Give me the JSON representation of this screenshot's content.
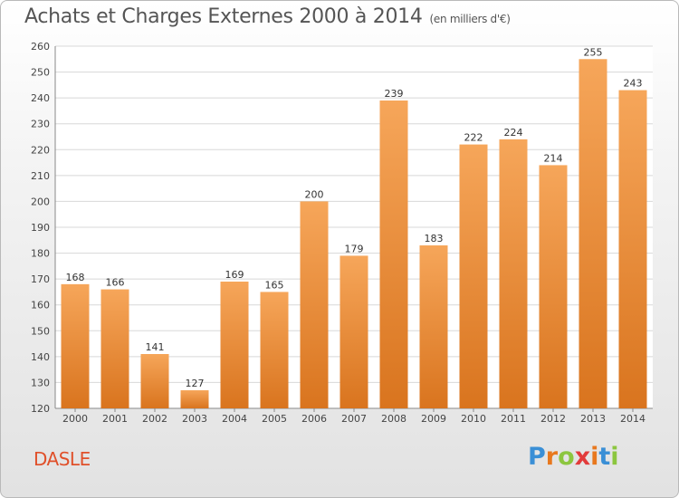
{
  "header": {
    "title": "Achats et Charges Externes 2000 à 2014",
    "unit": "(en milliers d'€)"
  },
  "footer": {
    "place": "DASLE",
    "logo_letters": [
      "P",
      "r",
      "o",
      "x",
      "i",
      "t",
      "i"
    ],
    "logo_colors": [
      "#3a8fd6",
      "#e8781e",
      "#8cc63f",
      "#e23b3b",
      "#e8781e",
      "#3a8fd6",
      "#8cc63f"
    ]
  },
  "chart_data": {
    "type": "bar",
    "categories": [
      "2000",
      "2001",
      "2002",
      "2003",
      "2004",
      "2005",
      "2006",
      "2007",
      "2008",
      "2009",
      "2010",
      "2011",
      "2012",
      "2013",
      "2014"
    ],
    "values": [
      168,
      166,
      141,
      127,
      169,
      165,
      200,
      179,
      239,
      183,
      222,
      224,
      214,
      255,
      243
    ],
    "ylim": [
      120,
      260
    ],
    "yticks": [
      120,
      130,
      140,
      150,
      160,
      170,
      180,
      190,
      200,
      210,
      220,
      230,
      240,
      250,
      260
    ],
    "grid": true,
    "bar_color_light": "#f6a65a",
    "bar_color_dark": "#d9741e"
  }
}
